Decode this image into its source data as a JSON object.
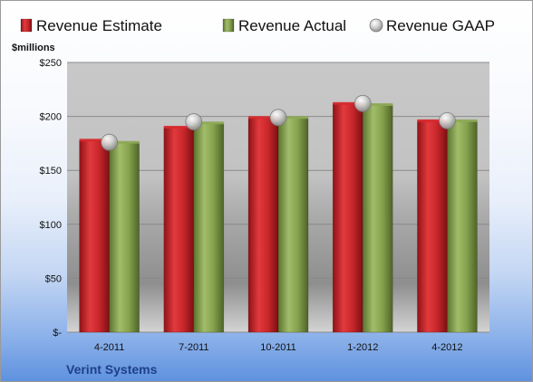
{
  "chart_data": {
    "type": "bar",
    "categories": [
      "4-2011",
      "7-2011",
      "10-2011",
      "1-2012",
      "4-2012"
    ],
    "series": [
      {
        "name": "Revenue Estimate",
        "kind": "bar",
        "color": "#d7272b",
        "values": [
          178,
          190,
          199,
          212,
          196
        ]
      },
      {
        "name": "Revenue Actual",
        "kind": "bar",
        "color": "#8daa55",
        "values": [
          176,
          194,
          199,
          211,
          196
        ]
      },
      {
        "name": "Revenue GAAP",
        "kind": "marker",
        "color": "#c9c9c9",
        "values": [
          176,
          195,
          199,
          212,
          196
        ]
      }
    ],
    "ylabel": "$millions",
    "ylim": [
      0,
      250
    ],
    "yticks": [
      0,
      50,
      100,
      150,
      200,
      250
    ],
    "ytick_labels": [
      "$-",
      "$50",
      "$100",
      "$150",
      "$200",
      "$250"
    ],
    "grid": true,
    "legend_position": "top",
    "footer": "Verint Systems"
  }
}
